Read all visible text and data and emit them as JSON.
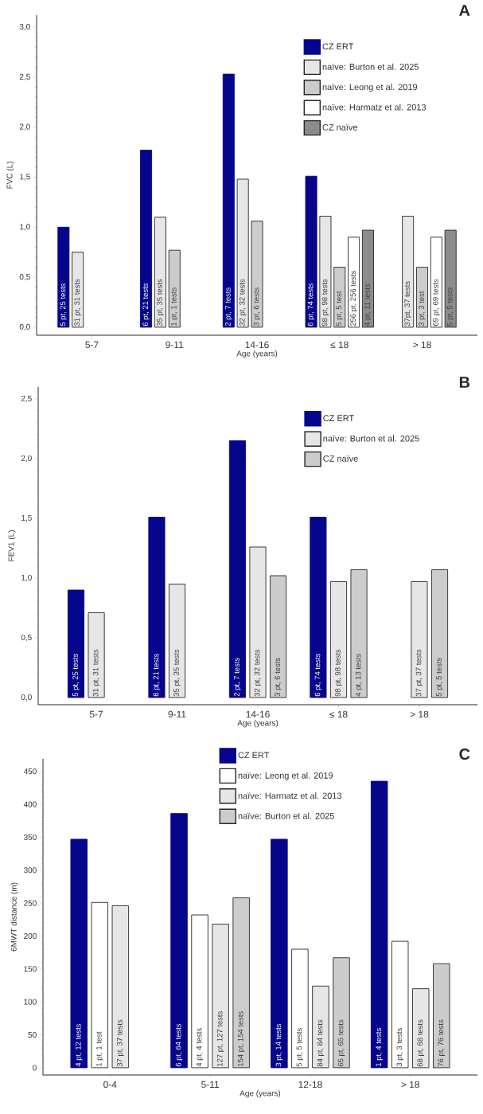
{
  "chart_data": [
    {
      "type": "bar",
      "title": "A",
      "xlabel": "Age (years)",
      "ylabel": "FVC (L)",
      "categories": [
        "5-7",
        "9-11",
        "14-16",
        "≤ 18",
        "> 18"
      ],
      "ylim": [
        -0.08,
        3.12
      ],
      "yticks": [
        {
          "value": 0,
          "label": "0,0"
        },
        {
          "value": 0.5,
          "label": "0,5"
        },
        {
          "value": 1,
          "label": "1,0"
        },
        {
          "value": 1.5,
          "label": "1,5"
        },
        {
          "value": 2,
          "label": "2,0"
        },
        {
          "value": 2.5,
          "label": "2,5"
        },
        {
          "value": 3,
          "label": "3,0"
        }
      ],
      "legend": "top right",
      "series": [
        {
          "name": "CZ ERT",
          "color": "#06068c",
          "values": [
            1.0,
            1.77,
            2.53,
            1.51,
            null
          ]
        },
        {
          "name": "naïve: Burton et al. 2025",
          "color": "#e6e6e6",
          "values": [
            0.75,
            1.1,
            1.48,
            1.11,
            1.11
          ]
        },
        {
          "name": "naïve: Leong et al. 2019",
          "color": "#cccccc",
          "values": [
            null,
            0.77,
            1.06,
            0.6,
            0.6
          ]
        },
        {
          "name": "naïve: Harmatz et al. 2013",
          "color": "#ffffff",
          "values": [
            null,
            null,
            null,
            0.9,
            0.9
          ]
        },
        {
          "name": "CZ naïve",
          "color": "#8c8c8c",
          "values": [
            null,
            null,
            null,
            0.97,
            0.97
          ]
        }
      ],
      "annotations": [
        "5 pt, 25 tests",
        "6 pt, 21 tests",
        "2 pt, 7 tests",
        "6 pt, 74 tests",
        "31 pt, 31 tests",
        "35 pt, 35 tests",
        "32 pt, 32 tests",
        "98 pt, 98 tests",
        "37pt, 37 tests",
        "1 pt, 1 tests",
        "3 pt, 6 tests",
        "5 pt, 5 test",
        "3 pt, 3 test",
        "256 pt, 256 tests",
        "69 pt, 69 tests",
        "4 pt, 11 tests",
        "5 pt, 5 tests"
      ]
    },
    {
      "type": "bar",
      "title": "B",
      "xlabel": "Age (years)",
      "ylabel": "FEV1 (L)",
      "categories": [
        "5-7",
        "9-11",
        "14-16",
        "≤ 18",
        "> 18"
      ],
      "ylim": [
        -0.06,
        2.6
      ],
      "yticks": [
        {
          "value": 0,
          "label": "0,0"
        },
        {
          "value": 0.5,
          "label": "0,5"
        },
        {
          "value": 1,
          "label": "1,0"
        },
        {
          "value": 1.5,
          "label": "1,5"
        },
        {
          "value": 2,
          "label": "2,0"
        },
        {
          "value": 2.5,
          "label": "2,5"
        }
      ],
      "legend": "top right",
      "series": [
        {
          "name": "CZ ERT",
          "color": "#06068c",
          "values": [
            0.9,
            1.51,
            2.15,
            1.51,
            null
          ]
        },
        {
          "name": "naïve: Burton et al. 2025",
          "color": "#e6e6e6",
          "values": [
            0.71,
            0.95,
            1.26,
            0.97,
            0.97
          ]
        },
        {
          "name": "CZ naïve",
          "color": "#cccccc",
          "values": [
            null,
            null,
            1.02,
            1.07,
            1.07
          ]
        }
      ],
      "annotations": [
        "5 pt, 25 tests",
        "6 pt, 21 tests",
        "2 pt, 7 tests",
        "6 pt, 74 tests",
        "31 pt, 31 tests",
        "35 pt, 35 tests",
        "32 pt, 32 tests",
        "98 pt, 98 tests",
        "37 pt, 37 tests",
        "3 pt, 6 tests",
        "4 pt, 13 tests",
        "5 pt, 5 tests"
      ]
    },
    {
      "type": "bar",
      "title": "C",
      "xlabel": "Age (years)",
      "ylabel": "6MWT distance (m)",
      "categories": [
        "0-4",
        "5-11",
        "12-18",
        "> 18"
      ],
      "ylim": [
        -11,
        469
      ],
      "yticks": [
        0,
        50,
        100,
        150,
        200,
        250,
        300,
        350,
        400,
        450
      ],
      "legend": "top",
      "series": [
        {
          "name": "CZ ERT",
          "color": "#06068c",
          "values": [
            347,
            386,
            347,
            435
          ]
        },
        {
          "name": "naïve: Leong et al. 2019",
          "color": "#ffffff",
          "values": [
            251,
            232,
            180,
            192
          ]
        },
        {
          "name": "naïve: Harmatz et al. 2013",
          "color": "#e6e6e6",
          "values": [
            246,
            218,
            124,
            120
          ]
        },
        {
          "name": "naïve: Burton et al. 2025",
          "color": "#cccccc",
          "values": [
            null,
            258,
            167,
            158
          ]
        }
      ],
      "annotations": [
        "4 pt, 12 tests",
        "6 pt, 64 tests",
        "3 pt, 14 tests",
        "1 pt, 4 tests",
        "1 pt, 1 test",
        "4 pt, 4 tests",
        "5 pt, 5 tests",
        "3 pt, 3 tests",
        "37 pt, 37 tests",
        "127 pt, 127 tests",
        "84 pt, 84 tests",
        "68 pt, 68 tests",
        "154 pt, 154 tests",
        "65 pt, 65 tests",
        "76 pt, 76 tests"
      ]
    }
  ]
}
